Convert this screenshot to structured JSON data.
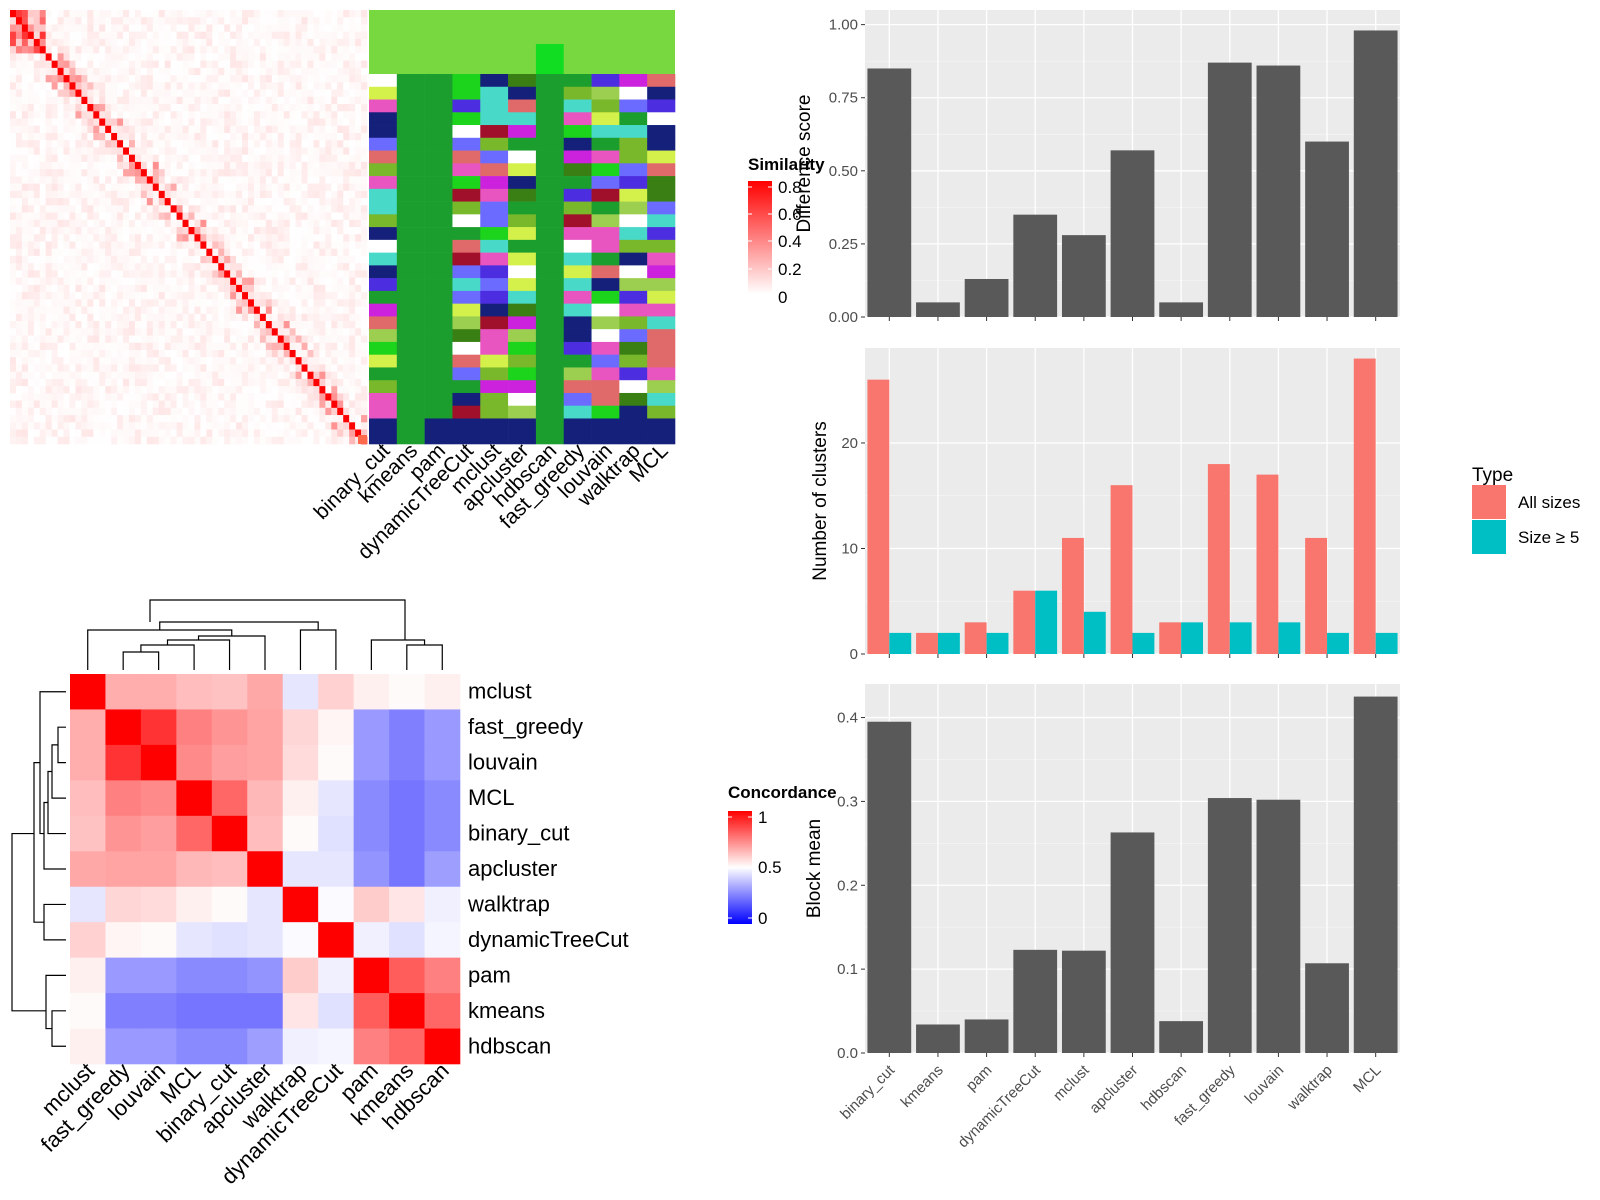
{
  "methods": [
    "binary_cut",
    "kmeans",
    "pam",
    "dynamicTreeCut",
    "mclust",
    "apcluster",
    "hdbscan",
    "fast_greedy",
    "louvain",
    "walktrap",
    "MCL"
  ],
  "concordance_order": [
    "mclust",
    "fast_greedy",
    "louvain",
    "MCL",
    "binary_cut",
    "apcluster",
    "walktrap",
    "dynamicTreeCut",
    "pam",
    "kmeans",
    "hdbscan"
  ],
  "similarity_legend": {
    "title": "Similarity",
    "ticks": [
      "0.8",
      "0.6",
      "0.4",
      "0.2",
      "0"
    ],
    "colors": {
      "high": "#ff0000",
      "low": "#ffffff"
    }
  },
  "concordance_legend": {
    "title": "Concordance",
    "ticks": [
      "1",
      "0.5",
      "0"
    ],
    "colors": {
      "high": "#ff0000",
      "mid": "#ffffff",
      "low": "#0000ff"
    }
  },
  "type_legend": {
    "title": "Type",
    "items": [
      {
        "label": "All sizes",
        "color": "#f8766d"
      },
      {
        "label": "Size ≥ 5",
        "color": "#00bfc4"
      }
    ]
  },
  "chart_data": [
    {
      "type": "heatmap",
      "title": "",
      "description_legend": "Similarity",
      "n_terms": 60,
      "diagonal_value": 0.8,
      "color_range": [
        0,
        0.8
      ],
      "x": [],
      "y": []
    },
    {
      "type": "heatmap",
      "title": "",
      "categories": [
        "binary_cut",
        "kmeans",
        "pam",
        "dynamicTreeCut",
        "mclust",
        "apcluster",
        "hdbscan",
        "fast_greedy",
        "louvain",
        "walktrap",
        "MCL"
      ],
      "legend": "cluster assignments (categorical colors)"
    },
    {
      "type": "heatmap",
      "title": "",
      "legend_title": "Concordance",
      "categories": [
        "mclust",
        "fast_greedy",
        "louvain",
        "MCL",
        "binary_cut",
        "apcluster",
        "walktrap",
        "dynamicTreeCut",
        "pam",
        "kmeans",
        "hdbscan"
      ],
      "matrix": [
        [
          1.0,
          0.66,
          0.66,
          0.63,
          0.62,
          0.67,
          0.45,
          0.59,
          0.53,
          0.51,
          0.53
        ],
        [
          0.66,
          1.0,
          0.9,
          0.75,
          0.71,
          0.68,
          0.58,
          0.52,
          0.3,
          0.25,
          0.3
        ],
        [
          0.66,
          0.9,
          1.0,
          0.73,
          0.69,
          0.68,
          0.57,
          0.51,
          0.3,
          0.25,
          0.3
        ],
        [
          0.63,
          0.75,
          0.73,
          1.0,
          0.8,
          0.64,
          0.53,
          0.45,
          0.27,
          0.23,
          0.27
        ],
        [
          0.62,
          0.71,
          0.69,
          0.8,
          1.0,
          0.63,
          0.51,
          0.44,
          0.27,
          0.23,
          0.27
        ],
        [
          0.67,
          0.68,
          0.68,
          0.64,
          0.63,
          1.0,
          0.45,
          0.45,
          0.29,
          0.23,
          0.31
        ],
        [
          0.45,
          0.58,
          0.57,
          0.53,
          0.51,
          0.45,
          1.0,
          0.49,
          0.6,
          0.55,
          0.47
        ],
        [
          0.59,
          0.52,
          0.51,
          0.45,
          0.44,
          0.45,
          0.49,
          1.0,
          0.47,
          0.44,
          0.48
        ],
        [
          0.53,
          0.3,
          0.3,
          0.27,
          0.27,
          0.29,
          0.6,
          0.47,
          1.0,
          0.82,
          0.75
        ],
        [
          0.51,
          0.25,
          0.25,
          0.23,
          0.23,
          0.23,
          0.55,
          0.44,
          0.82,
          1.0,
          0.8
        ],
        [
          0.53,
          0.3,
          0.3,
          0.27,
          0.27,
          0.31,
          0.47,
          0.48,
          0.75,
          0.8,
          1.0
        ]
      ],
      "ylim": [
        0,
        1
      ]
    },
    {
      "type": "bar",
      "title": "",
      "xlabel": "",
      "ylabel": "Difference score",
      "categories": [
        "binary_cut",
        "kmeans",
        "pam",
        "dynamicTreeCut",
        "mclust",
        "apcluster",
        "hdbscan",
        "fast_greedy",
        "louvain",
        "walktrap",
        "MCL"
      ],
      "values": [
        0.85,
        0.05,
        0.13,
        0.35,
        0.28,
        0.57,
        0.05,
        0.87,
        0.86,
        0.6,
        0.98
      ],
      "ylim": [
        0,
        1.05
      ],
      "yticks": [
        "0.00",
        "0.25",
        "0.50",
        "0.75",
        "1.00"
      ]
    },
    {
      "type": "bar",
      "title": "",
      "xlabel": "",
      "ylabel": "Number of clusters",
      "categories": [
        "binary_cut",
        "kmeans",
        "pam",
        "dynamicTreeCut",
        "mclust",
        "apcluster",
        "hdbscan",
        "fast_greedy",
        "louvain",
        "walktrap",
        "MCL"
      ],
      "series": [
        {
          "name": "All sizes",
          "values": [
            26,
            2,
            3,
            6,
            11,
            16,
            3,
            18,
            17,
            11,
            28
          ]
        },
        {
          "name": "Size ≥ 5",
          "values": [
            2,
            2,
            2,
            6,
            4,
            2,
            3,
            3,
            3,
            2,
            2
          ]
        }
      ],
      "ylim": [
        0,
        29
      ],
      "yticks": [
        "0",
        "10",
        "20"
      ]
    },
    {
      "type": "bar",
      "title": "",
      "xlabel": "",
      "ylabel": "Block mean",
      "categories": [
        "binary_cut",
        "kmeans",
        "pam",
        "dynamicTreeCut",
        "mclust",
        "apcluster",
        "hdbscan",
        "fast_greedy",
        "louvain",
        "walktrap",
        "MCL"
      ],
      "values": [
        0.395,
        0.034,
        0.04,
        0.123,
        0.122,
        0.263,
        0.038,
        0.304,
        0.302,
        0.107,
        0.425
      ],
      "ylim": [
        0,
        0.44
      ],
      "yticks": [
        "0.0",
        "0.1",
        "0.2",
        "0.3",
        "0.4"
      ]
    }
  ]
}
